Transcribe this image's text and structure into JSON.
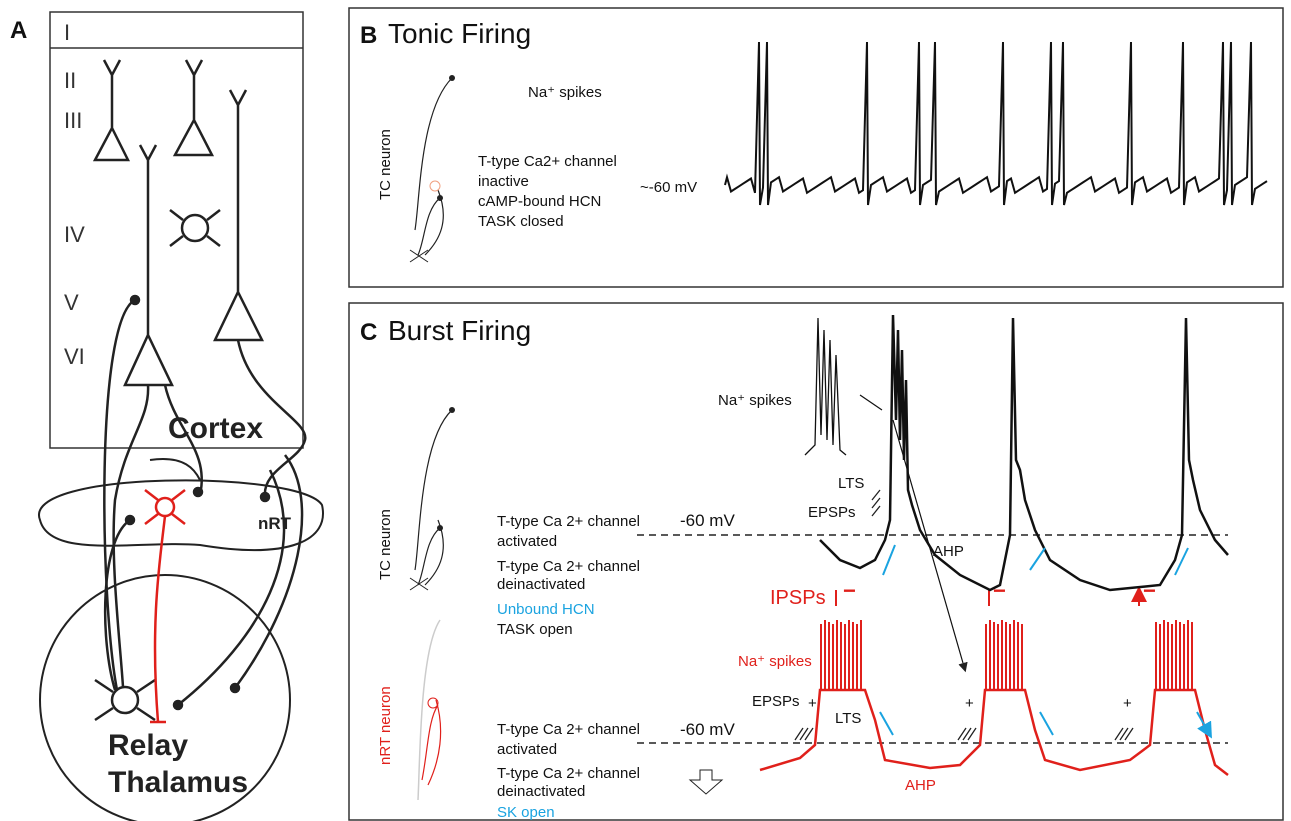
{
  "panel_a": {
    "label": "A",
    "layers": [
      "I",
      "II",
      "III",
      "IV",
      "V",
      "VI"
    ],
    "cortex": "Cortex",
    "nrt": "nRT",
    "thalamus": [
      "Relay",
      "Thalamus"
    ]
  },
  "panel_b": {
    "label": "B",
    "title": "Tonic Firing",
    "neuron": "TC neuron",
    "spikes": "Na⁺ spikes",
    "state": [
      "T-type Ca2+ channel",
      "inactive",
      "cAMP-bound HCN",
      "TASK closed"
    ],
    "potential": "~-60 mV"
  },
  "panel_c": {
    "label": "C",
    "title": "Burst Firing",
    "tc": {
      "neuron": "TC neuron",
      "spikes": "Na⁺ spikes",
      "lts": "LTS",
      "epsps": "EPSPs",
      "activated": [
        "T-type Ca 2+ channel",
        "activated"
      ],
      "potential": "-60 mV",
      "deinactivated": [
        "T-type Ca 2+ channel",
        "deinactivated"
      ],
      "ahp": "AHP",
      "hcn": "Unbound HCN",
      "task": "TASK open",
      "ipsps": "IPSPs",
      "ipsp_signs": [
        "−",
        "−",
        "−"
      ]
    },
    "nrt": {
      "neuron": "nRT neuron",
      "spikes": "Na⁺ spikes",
      "epsps": "EPSPs",
      "plus": [
        "+",
        "+",
        "+"
      ],
      "lts": "LTS",
      "activated": [
        "T-type Ca 2+ channel",
        "activated"
      ],
      "potential": "-60 mV",
      "deinactivated": [
        "T-type Ca 2+ channel",
        "deinactivated"
      ],
      "ahp": "AHP",
      "sk": "SK open"
    }
  }
}
